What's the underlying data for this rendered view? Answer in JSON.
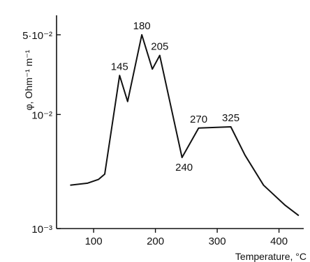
{
  "chart_data": {
    "type": "line",
    "title": "",
    "xlabel": "Temperature, °C",
    "ylabel": "φ, Ohm⁻¹ m⁻¹",
    "y_scale": "log",
    "xlim": [
      40,
      440
    ],
    "ylim": [
      0.001,
      0.07
    ],
    "x_ticks": [
      {
        "value": 100,
        "label": "100"
      },
      {
        "value": 200,
        "label": "200"
      },
      {
        "value": 300,
        "label": "300"
      },
      {
        "value": 400,
        "label": "400"
      }
    ],
    "y_ticks": [
      {
        "value": 0.001,
        "label": "10⁻³"
      },
      {
        "value": 0.01,
        "label": "10⁻²"
      },
      {
        "value": 0.05,
        "label": "5·10⁻²"
      }
    ],
    "grid": false,
    "series": [
      {
        "x": [
          62,
          90,
          108,
          118,
          142,
          155,
          178,
          195,
          207,
          243,
          270,
          322,
          345,
          375,
          410,
          432
        ],
        "y": [
          0.0024,
          0.0025,
          0.0027,
          0.003,
          0.022,
          0.013,
          0.05,
          0.025,
          0.033,
          0.0042,
          0.0076,
          0.0078,
          0.0044,
          0.0024,
          0.0016,
          0.0013
        ]
      }
    ],
    "annotations": [
      {
        "text": "145",
        "x": 142,
        "y": 0.022
      },
      {
        "text": "180",
        "x": 178,
        "y": 0.05
      },
      {
        "text": "205",
        "x": 207,
        "y": 0.033
      },
      {
        "text": "240",
        "x": 243,
        "y": 0.0042
      },
      {
        "text": "270",
        "x": 270,
        "y": 0.0076
      },
      {
        "text": "325",
        "x": 322,
        "y": 0.0078
      }
    ]
  }
}
